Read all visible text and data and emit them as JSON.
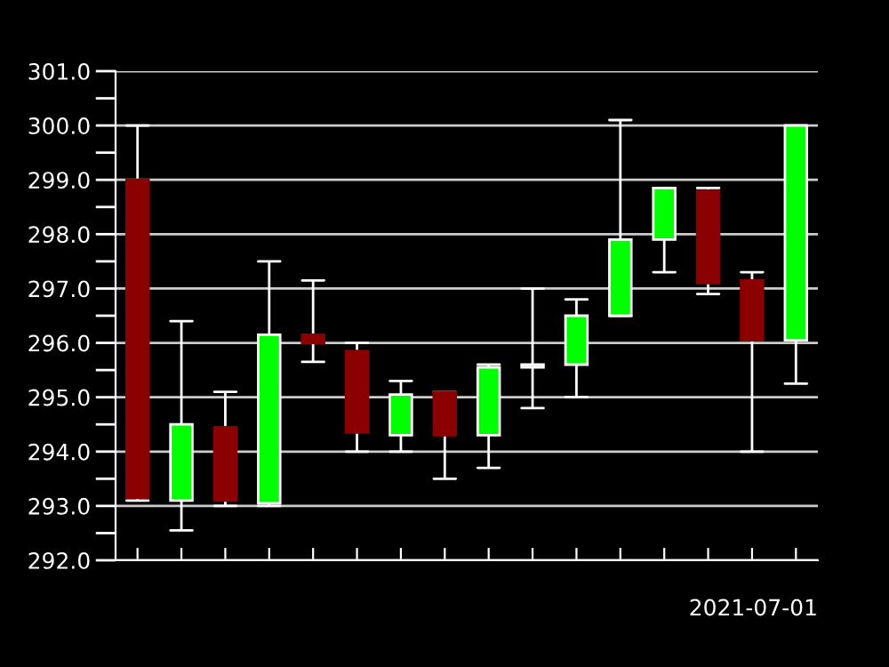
{
  "chart_data": {
    "type": "candlestick",
    "xlabel": "2021-07-01",
    "categories": [
      null,
      null,
      null,
      null,
      null,
      null,
      null,
      null,
      null,
      null,
      null,
      null,
      null,
      null,
      null,
      null
    ],
    "ohlc": [
      [
        299.0,
        300.0,
        293.1,
        293.15
      ],
      [
        293.1,
        296.4,
        292.55,
        294.5
      ],
      [
        294.45,
        295.1,
        293.0,
        293.1
      ],
      [
        293.05,
        297.5,
        293.0,
        296.15
      ],
      [
        296.15,
        297.15,
        295.65,
        296.0
      ],
      [
        295.85,
        296.0,
        294.0,
        294.35
      ],
      [
        294.3,
        295.3,
        294.0,
        295.05
      ],
      [
        295.1,
        295.1,
        293.5,
        294.3
      ],
      [
        294.3,
        295.6,
        293.7,
        295.55
      ],
      [
        295.55,
        297.0,
        294.8,
        295.6
      ],
      [
        295.6,
        296.8,
        295.0,
        296.5
      ],
      [
        296.5,
        300.1,
        296.5,
        297.9
      ],
      [
        297.9,
        298.85,
        297.3,
        298.85
      ],
      [
        298.8,
        298.85,
        296.9,
        297.1
      ],
      [
        297.15,
        297.3,
        294.0,
        296.05
      ],
      [
        296.05,
        300.0,
        295.25,
        300.0
      ]
    ],
    "colors": [
      "#8b0000",
      "#00ff00",
      "#8b0000",
      "#00ff00",
      "#8b0000",
      "#8b0000",
      "#00ff00",
      "#8b0000",
      "#00ff00",
      "#00ff00",
      "#00ff00",
      "#00ff00",
      "#00ff00",
      "#8b0000",
      "#8b0000",
      "#00ff00"
    ],
    "ylim": [
      292.0,
      301.0
    ],
    "yticks": [
      {
        "value": 292.0,
        "label": "292.0"
      },
      {
        "value": 292.5,
        "label": null
      },
      {
        "value": 293.0,
        "label": "293.0"
      },
      {
        "value": 293.5,
        "label": null
      },
      {
        "value": 294.0,
        "label": "294.0"
      },
      {
        "value": 294.5,
        "label": null
      },
      {
        "value": 295.0,
        "label": "295.0"
      },
      {
        "value": 295.5,
        "label": null
      },
      {
        "value": 296.0,
        "label": "296.0"
      },
      {
        "value": 296.5,
        "label": null
      },
      {
        "value": 297.0,
        "label": "297.0"
      },
      {
        "value": 297.5,
        "label": null
      },
      {
        "value": 298.0,
        "label": "298.0"
      },
      {
        "value": 298.5,
        "label": null
      },
      {
        "value": 299.0,
        "label": "299.0"
      },
      {
        "value": 299.5,
        "label": null
      },
      {
        "value": 300.0,
        "label": "300.0"
      },
      {
        "value": 300.5,
        "label": null
      },
      {
        "value": 301.0,
        "label": "301.0"
      }
    ],
    "grid": "y"
  }
}
